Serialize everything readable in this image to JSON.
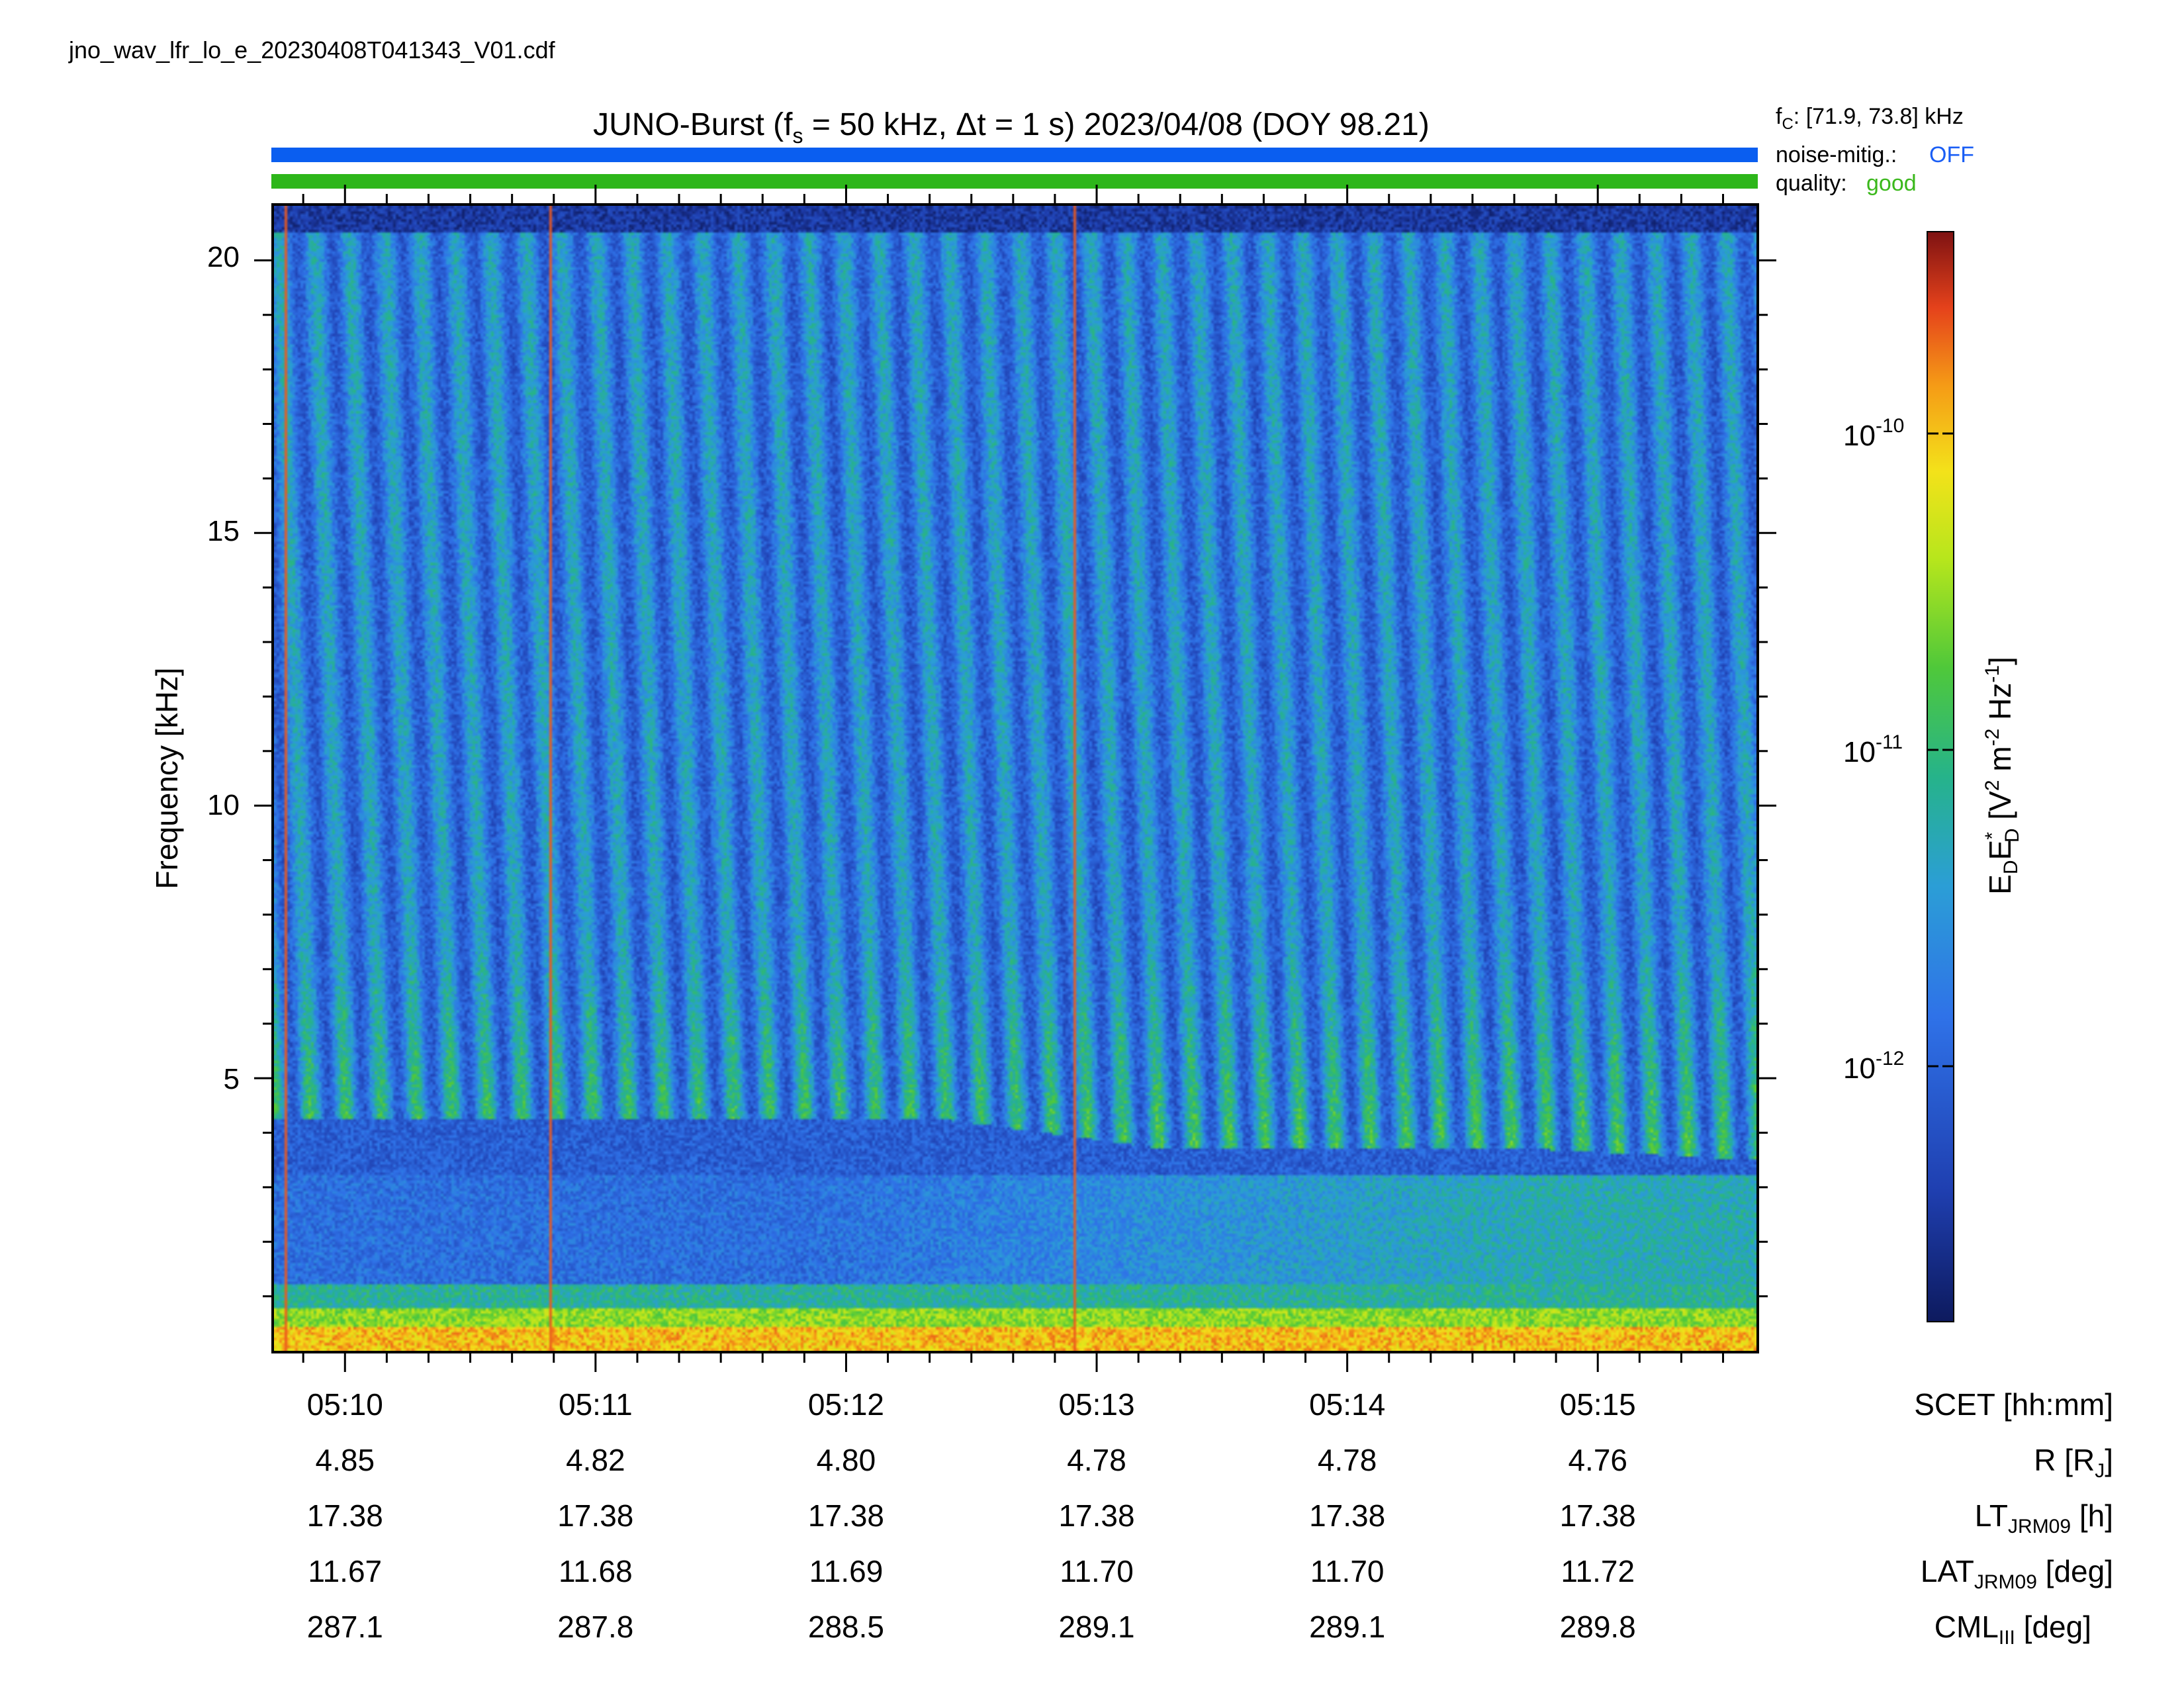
{
  "header": {
    "filename": "jno_wav_lfr_lo_e_20230408T041343_V01.cdf",
    "title_prefix": "JUNO-Burst (f",
    "title_fs_sub": "s",
    "title_mid": " = 50 kHz, Δt = 1 s)  2023/04/08 (DOY 98.21)",
    "fc_label": "f",
    "fc_sub": "C",
    "fc_value": ": [71.9, 73.8] kHz",
    "noise_label": "noise-mitig.:",
    "noise_value": "OFF",
    "quality_label": "quality:",
    "quality_value": "good"
  },
  "colors": {
    "noise_bar": "#0a5ef0",
    "quality_bar": "#2db61a",
    "noise_value": "#1a5ef5",
    "quality_value": "#3bb81c"
  },
  "chart_data": {
    "type": "heatmap",
    "ylabel": "Frequency [kHz]",
    "ylim": [
      0,
      21
    ],
    "y_major_ticks": [
      5,
      10,
      15,
      20
    ],
    "y_tick_labels": [
      "5",
      "10",
      "15",
      "20"
    ],
    "x_range": [
      "05:09:43",
      "05:15:38"
    ],
    "x_tick_times": [
      "05:10",
      "05:11",
      "05:12",
      "05:13",
      "05:14",
      "05:15"
    ],
    "colorbar": {
      "label": "E_D E_D* [V^2 m^-2 Hz^-1]",
      "scale": "log",
      "ticks": [
        "10^-10",
        "10^-11",
        "10^-12"
      ]
    },
    "ephemeris": {
      "rows": [
        {
          "label": "SCET [hh:mm]",
          "values": [
            "05:10",
            "05:11",
            "05:12",
            "05:13",
            "05:14",
            "05:15"
          ]
        },
        {
          "label": "R [R_J]",
          "values": [
            "4.85",
            "4.82",
            "4.80",
            "4.78",
            "4.78",
            "4.76"
          ]
        },
        {
          "label": "LT_JRM09 [h]",
          "values": [
            "17.38",
            "17.38",
            "17.38",
            "17.38",
            "17.38",
            "17.38"
          ]
        },
        {
          "label": "LAT_JRM09 [deg]",
          "values": [
            "11.67",
            "11.68",
            "11.69",
            "11.70",
            "11.70",
            "11.72"
          ]
        },
        {
          "label": "CML_III [deg]",
          "values": [
            "287.1",
            "287.8",
            "288.5",
            "289.1",
            "289.1",
            "289.8"
          ]
        }
      ]
    }
  }
}
